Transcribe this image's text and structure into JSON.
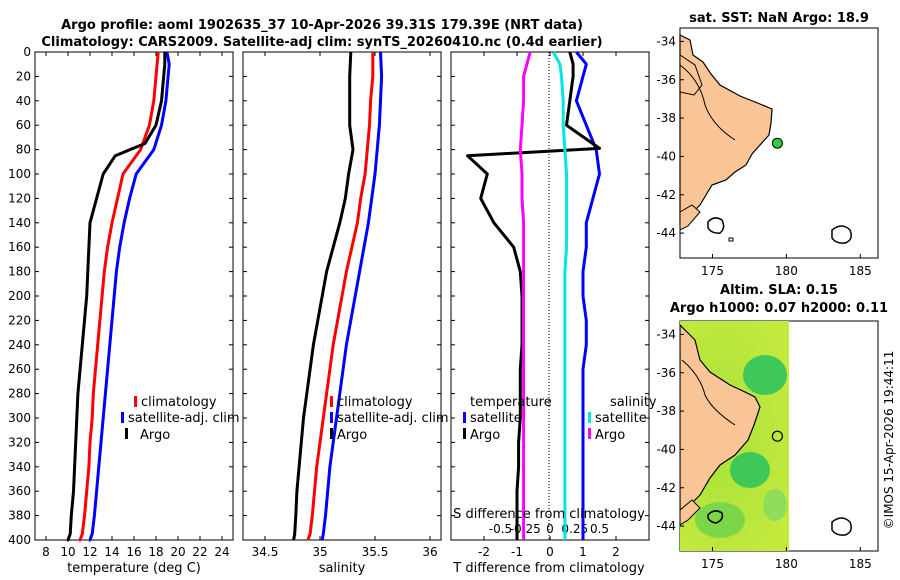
{
  "title": {
    "line1": "Argo profile: aoml 1902635_37 10-Apr-2026 39.31S 179.39E (NRT data)",
    "line2": "Climatology: CARS2009. Satellite-adj clim: synTS_20260410.nc (0.4d earlier)"
  },
  "credit": "©IMOS 15-Apr-2026 19:44:11",
  "colors": {
    "climatology": "#ff0000",
    "satellite": "#0000ff",
    "argo": "#000000",
    "magenta": "#ff00ff",
    "cyan": "#00e5e5",
    "green": "#33cc33",
    "land": "#f9c596"
  },
  "chart_data": [
    {
      "type": "line",
      "title": "",
      "xlabel": "temperature (deg C)",
      "ylabel": "",
      "xlim": [
        7,
        25
      ],
      "ylim": [
        400,
        0
      ],
      "xticks": [
        8,
        10,
        12,
        14,
        16,
        18,
        20,
        22,
        24
      ],
      "yticks": [
        0,
        20,
        40,
        60,
        80,
        100,
        120,
        140,
        160,
        180,
        200,
        220,
        240,
        260,
        280,
        300,
        320,
        340,
        360,
        380,
        400
      ],
      "legend": [
        "climatology",
        "satellite-adj. clim",
        "Argo"
      ],
      "series": [
        {
          "name": "climatology",
          "color": "#ff0000",
          "x": [
            18.2,
            18.1,
            18.0,
            17.8,
            17.4,
            16.6,
            15.8,
            15.0,
            14.5,
            14.0,
            13.6,
            13.3,
            13.1,
            12.9,
            12.7,
            12.5,
            12.3,
            12.2,
            12.0,
            11.9,
            11.7,
            11.5,
            11.3,
            11.1,
            11.0
          ],
          "depth": [
            0,
            10,
            20,
            40,
            60,
            80,
            90,
            100,
            120,
            140,
            160,
            180,
            200,
            220,
            240,
            260,
            280,
            300,
            320,
            340,
            360,
            380,
            395,
            400,
            400
          ]
        },
        {
          "name": "satellite-adj. clim",
          "color": "#0000ff",
          "x": [
            19.0,
            19.2,
            19.1,
            18.9,
            18.5,
            17.8,
            17.0,
            16.2,
            15.6,
            15.1,
            14.7,
            14.4,
            14.2,
            14.0,
            13.8,
            13.6,
            13.4,
            13.2,
            13.0,
            12.8,
            12.6,
            12.4,
            12.2,
            12.0,
            11.9
          ],
          "depth": [
            0,
            10,
            20,
            40,
            60,
            80,
            90,
            100,
            120,
            140,
            160,
            180,
            200,
            220,
            240,
            260,
            280,
            300,
            320,
            340,
            360,
            380,
            395,
            400,
            400
          ]
        },
        {
          "name": "Argo",
          "color": "#000000",
          "x": [
            18.8,
            18.8,
            18.7,
            18.5,
            18.0,
            17.0,
            14.3,
            13.2,
            12.6,
            12.0,
            11.9,
            11.8,
            11.7,
            11.5,
            11.3,
            11.1,
            10.9,
            10.8,
            10.7,
            10.6,
            10.5,
            10.3,
            10.2,
            10.0,
            9.9
          ],
          "depth": [
            0,
            10,
            20,
            40,
            60,
            75,
            85,
            100,
            120,
            140,
            160,
            180,
            200,
            220,
            240,
            260,
            280,
            300,
            320,
            340,
            360,
            380,
            395,
            400,
            400
          ]
        }
      ]
    },
    {
      "type": "line",
      "xlabel": "salinity",
      "xlim": [
        34.3,
        36.1
      ],
      "ylim": [
        400,
        0
      ],
      "xticks": [
        "34.5",
        "35",
        "35.5",
        "36"
      ],
      "xtick_values": [
        34.5,
        35.0,
        35.5,
        36.0
      ],
      "legend": [
        "climatology",
        "satellite-adj. clim",
        "Argo"
      ],
      "series": [
        {
          "name": "climatology",
          "color": "#ff0000",
          "x": [
            35.48,
            35.48,
            35.46,
            35.45,
            35.43,
            35.41,
            35.37,
            35.34,
            35.29,
            35.24,
            35.2,
            35.16,
            35.12,
            35.09,
            35.06,
            35.03,
            35.0,
            34.97,
            34.95,
            34.93,
            34.91,
            34.89
          ],
          "depth": [
            0,
            20,
            40,
            60,
            80,
            100,
            120,
            140,
            160,
            180,
            200,
            220,
            240,
            260,
            280,
            300,
            320,
            340,
            360,
            380,
            395,
            400
          ]
        },
        {
          "name": "satellite-adj. clim",
          "color": "#0000ff",
          "x": [
            35.55,
            35.56,
            35.55,
            35.54,
            35.52,
            35.5,
            35.47,
            35.44,
            35.4,
            35.36,
            35.32,
            35.28,
            35.24,
            35.21,
            35.18,
            35.15,
            35.12,
            35.09,
            35.07,
            35.05,
            35.03,
            35.02
          ],
          "depth": [
            0,
            20,
            40,
            60,
            80,
            100,
            120,
            140,
            160,
            180,
            200,
            220,
            240,
            260,
            280,
            300,
            320,
            340,
            360,
            380,
            395,
            400
          ]
        },
        {
          "name": "Argo",
          "color": "#000000",
          "x": [
            35.28,
            35.27,
            35.27,
            35.27,
            35.3,
            35.26,
            35.23,
            35.18,
            35.12,
            35.06,
            35.02,
            34.98,
            34.94,
            34.91,
            34.88,
            34.85,
            34.83,
            34.81,
            34.79,
            34.78,
            34.77,
            34.76
          ],
          "depth": [
            0,
            20,
            40,
            60,
            80,
            100,
            120,
            140,
            160,
            180,
            200,
            220,
            240,
            260,
            280,
            300,
            320,
            340,
            360,
            380,
            395,
            400
          ]
        }
      ]
    },
    {
      "type": "line",
      "xlabel": "T difference from climatology",
      "top_label": "S difference from climatology",
      "xlim": [
        -3,
        3
      ],
      "ylim": [
        400,
        0
      ],
      "xticks": [
        -2,
        -1,
        0,
        1,
        2
      ],
      "top_ticks": [
        "-0.5",
        "-0.25",
        "0",
        "0.25",
        "0.5"
      ],
      "top_tick_values": [
        -1.5,
        -0.75,
        0,
        0.75,
        1.5
      ],
      "legend_left_title": "temperature",
      "legend_right_title": "salinity",
      "legend_left": [
        "satellite",
        "Argo"
      ],
      "legend_right": [
        "satellite",
        "Argo"
      ],
      "series": [
        {
          "name": "T satellite",
          "color": "#0000ff",
          "x": [
            0.8,
            1.1,
            1.0,
            0.8,
            1.1,
            1.4,
            1.5,
            1.3,
            1.1,
            1.1,
            1.0,
            1.0,
            1.1,
            1.1,
            1.0,
            1.0,
            1.0,
            1.0,
            1.0,
            1.0,
            1.0,
            1.0,
            1.0
          ],
          "depth": [
            0,
            10,
            20,
            40,
            60,
            80,
            100,
            120,
            140,
            160,
            180,
            200,
            220,
            240,
            260,
            280,
            300,
            320,
            340,
            360,
            380,
            395,
            400
          ]
        },
        {
          "name": "T Argo",
          "color": "#000000",
          "x": [
            0.6,
            0.7,
            0.7,
            0.6,
            0.5,
            1.5,
            -2.5,
            -1.9,
            -2.1,
            -1.7,
            -1.1,
            -0.9,
            -0.85,
            -0.85,
            -0.85,
            -0.9,
            -0.9,
            -0.9,
            -0.95,
            -0.95,
            -1.0,
            -1.0,
            -1.0
          ],
          "depth": [
            0,
            10,
            20,
            40,
            60,
            79,
            85,
            100,
            120,
            140,
            160,
            180,
            200,
            220,
            240,
            260,
            280,
            300,
            320,
            340,
            360,
            380,
            400
          ]
        },
        {
          "name": "S satellite",
          "color": "#00e5e5",
          "x": [
            0.1,
            0.3,
            0.35,
            0.4,
            0.4,
            0.45,
            0.5,
            0.5,
            0.5,
            0.5,
            0.45,
            0.45,
            0.45,
            0.45,
            0.45,
            0.45,
            0.45,
            0.45,
            0.45,
            0.45,
            0.45,
            0.45,
            0.45
          ],
          "depth": [
            0,
            10,
            20,
            40,
            60,
            80,
            100,
            120,
            140,
            160,
            180,
            200,
            220,
            240,
            260,
            280,
            300,
            320,
            340,
            360,
            380,
            395,
            400
          ]
        },
        {
          "name": "S Argo",
          "color": "#ff00ff",
          "x": [
            -0.6,
            -0.7,
            -0.8,
            -0.8,
            -0.85,
            -0.9,
            -0.85,
            -0.85,
            -0.8,
            -0.8,
            -0.8,
            -0.8,
            -0.8,
            -0.8,
            -0.8,
            -0.8,
            -0.8,
            -0.8,
            -0.8,
            -0.8,
            -0.8,
            -0.8,
            -0.8
          ],
          "depth": [
            0,
            10,
            20,
            40,
            60,
            80,
            100,
            120,
            140,
            160,
            180,
            200,
            220,
            240,
            260,
            280,
            300,
            320,
            340,
            360,
            380,
            395,
            400
          ]
        }
      ]
    },
    {
      "type": "map",
      "title": "sat. SST: NaN Argo: 18.9",
      "xticks": [
        175,
        180,
        185
      ],
      "yticks": [
        -34,
        -36,
        -38,
        -40,
        -42,
        -44
      ],
      "xlim": [
        172.8,
        186.2
      ],
      "ylim": [
        -45.3,
        -33.3
      ],
      "marker": {
        "lon": 179.39,
        "lat": -39.31,
        "color": "#33cc33"
      }
    },
    {
      "type": "map",
      "title_line1": "Altim. SLA: 0.15",
      "title_line2": "Argo h1000: 0.07 h2000: 0.11",
      "xticks": [
        175,
        180,
        185
      ],
      "yticks": [
        -34,
        -36,
        -38,
        -40,
        -42,
        -44
      ],
      "xlim": [
        172.8,
        186.2
      ],
      "ylim": [
        -45.3,
        -33.3
      ],
      "marker": {
        "lon": 179.39,
        "lat": -39.31
      },
      "sla_extent_lon": [
        172.8,
        180.0
      ]
    }
  ]
}
